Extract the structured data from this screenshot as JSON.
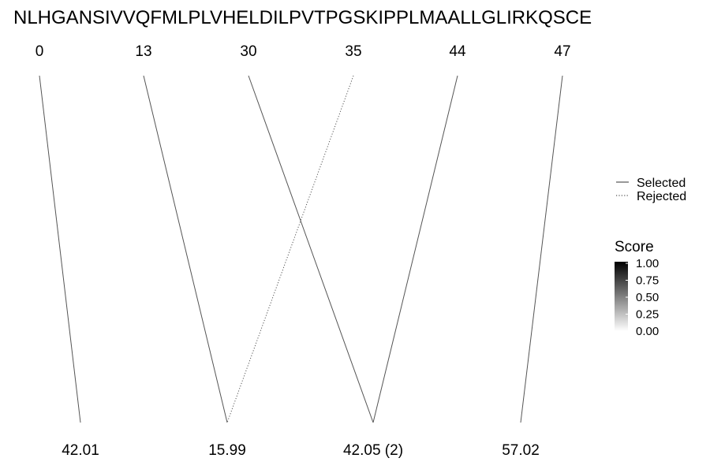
{
  "chart_data": {
    "type": "other",
    "title": "NLHGANSIVVQFMLPLVHELDILPVTPGSKIPPLMAALLGLIRKQSCE",
    "top_labels": [
      "0",
      "13",
      "30",
      "35",
      "44",
      "47"
    ],
    "bottom_labels": [
      "42.01",
      "15.99",
      "42.05 (2)",
      "57.02"
    ],
    "links": [
      {
        "from": "0",
        "to": "42.01",
        "status": "Selected"
      },
      {
        "from": "13",
        "to": "15.99",
        "status": "Selected"
      },
      {
        "from": "30",
        "to": "42.05 (2)",
        "status": "Selected"
      },
      {
        "from": "35",
        "to": "15.99",
        "status": "Rejected"
      },
      {
        "from": "44",
        "to": "42.05 (2)",
        "status": "Selected"
      },
      {
        "from": "47",
        "to": "57.02",
        "status": "Selected"
      }
    ],
    "legend_linetype": [
      {
        "label": "Selected",
        "style": "solid"
      },
      {
        "label": "Rejected",
        "style": "dotted"
      }
    ],
    "legend_score": {
      "title": "Score",
      "ticks": [
        "1.00",
        "0.75",
        "0.50",
        "0.25",
        "0.00"
      ],
      "range": [
        0,
        1
      ],
      "color_high": "#000000",
      "color_low": "#ffffff"
    },
    "line_color": "#555555",
    "legend_placement": "right"
  }
}
